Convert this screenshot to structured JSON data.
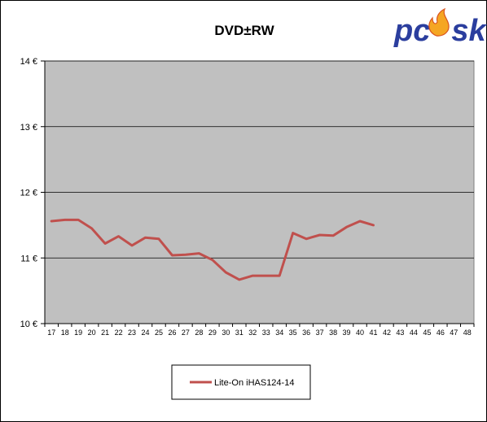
{
  "colors": {
    "plot_background": "#c0c0c0",
    "series_line": "#c0504d",
    "logo_blue": "#2b3e9e",
    "logo_flame": "#f5a623"
  },
  "logo": {
    "text": "pcask",
    "icon": "flame-icon"
  },
  "chart_data": {
    "type": "line",
    "title": "DVD±RW",
    "xlabel": "",
    "ylabel": "",
    "x": [
      17,
      18,
      19,
      20,
      21,
      22,
      23,
      24,
      25,
      26,
      27,
      28,
      29,
      30,
      31,
      32,
      33,
      34,
      35,
      36,
      37,
      38,
      39,
      40,
      41,
      42,
      43,
      44,
      45,
      46,
      47,
      48
    ],
    "x_tick_labels": [
      "17",
      "18",
      "19",
      "20",
      "21",
      "22",
      "23",
      "24",
      "25",
      "26",
      "27",
      "28",
      "29",
      "30",
      "31",
      "32",
      "33",
      "34",
      "35",
      "36",
      "37",
      "38",
      "39",
      "40",
      "41",
      "42",
      "43",
      "44",
      "45",
      "46",
      "47",
      "48"
    ],
    "y_tick_labels": [
      "10 €",
      "11 €",
      "12 €",
      "13 €",
      "14 €"
    ],
    "y_ticks": [
      10,
      11,
      12,
      13,
      14
    ],
    "ylim": [
      10,
      14
    ],
    "grid": true,
    "legend_position": "bottom-center",
    "series": [
      {
        "name": "Lite-On  iHAS124-14",
        "x": [
          17,
          18,
          19,
          20,
          21,
          22,
          23,
          24,
          25,
          26,
          27,
          28,
          29,
          30,
          31,
          32,
          33,
          34,
          35,
          36,
          37,
          38,
          39,
          40,
          41
        ],
        "values": [
          11.56,
          11.58,
          11.58,
          11.45,
          11.22,
          11.33,
          11.19,
          11.31,
          11.29,
          11.04,
          11.05,
          11.07,
          10.97,
          10.78,
          10.67,
          10.73,
          10.73,
          10.73,
          11.38,
          11.29,
          11.35,
          11.34,
          11.47,
          11.56,
          11.5
        ]
      }
    ]
  }
}
